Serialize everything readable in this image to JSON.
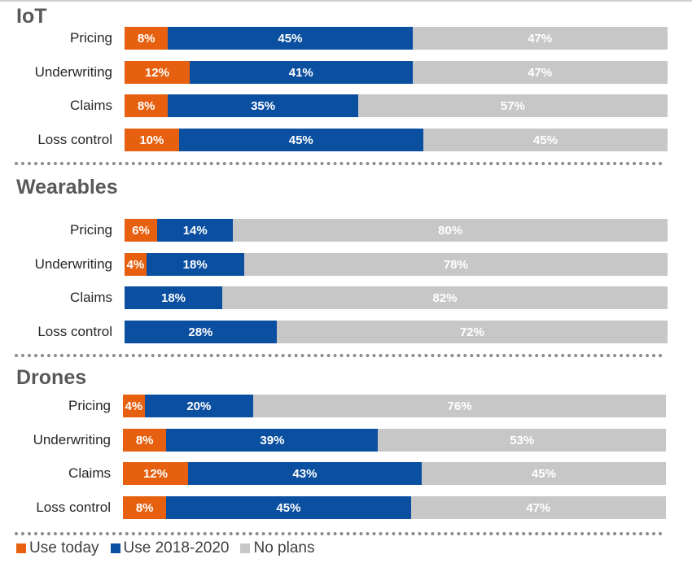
{
  "chart_data": {
    "type": "bar",
    "stacked": true,
    "orientation": "horizontal",
    "colors": {
      "today": "#e6600f",
      "planned": "#0b4fa1",
      "noplans": "#c7c7c7"
    },
    "legend": {
      "placement": "bottom-left",
      "items": [
        "Use today",
        "Use 2018-2020",
        "No plans"
      ]
    },
    "categories": [
      "Pricing",
      "Underwriting",
      "Claims",
      "Loss control"
    ],
    "groups": [
      {
        "title": "IoT",
        "rows": [
          {
            "label": "Pricing",
            "values": [
              8,
              45,
              47
            ],
            "labels": [
              "8%",
              "45%",
              "47%"
            ]
          },
          {
            "label": "Underwriting",
            "values": [
              12,
              41,
              47
            ],
            "labels": [
              "12%",
              "41%",
              "47%"
            ]
          },
          {
            "label": "Claims",
            "values": [
              8,
              35,
              57
            ],
            "labels": [
              "8%",
              "35%",
              "57%"
            ]
          },
          {
            "label": "Loss control",
            "values": [
              10,
              45,
              45
            ],
            "labels": [
              "10%",
              "45%",
              "45%"
            ]
          }
        ]
      },
      {
        "title": "Wearables",
        "rows": [
          {
            "label": "Pricing",
            "values": [
              6,
              14,
              80
            ],
            "labels": [
              "6%",
              "14%",
              "80%"
            ]
          },
          {
            "label": "Underwriting",
            "values": [
              4,
              18,
              78
            ],
            "labels": [
              "4%",
              "18%",
              "78%"
            ]
          },
          {
            "label": "Claims",
            "values": [
              0,
              18,
              82
            ],
            "labels": [
              "",
              "18%",
              "82%"
            ]
          },
          {
            "label": "Loss control",
            "values": [
              0,
              28,
              72
            ],
            "labels": [
              "",
              "28%",
              "72%"
            ]
          }
        ]
      },
      {
        "title": "Drones",
        "rows": [
          {
            "label": "Pricing",
            "values": [
              4,
              20,
              76
            ],
            "labels": [
              "4%",
              "20%",
              "76%"
            ]
          },
          {
            "label": "Underwriting",
            "values": [
              8,
              39,
              53
            ],
            "labels": [
              "8%",
              "39%",
              "53%"
            ]
          },
          {
            "label": "Claims",
            "values": [
              12,
              43,
              45
            ],
            "labels": [
              "12%",
              "43%",
              "45%"
            ]
          },
          {
            "label": "Loss control",
            "values": [
              8,
              45,
              47
            ],
            "labels": [
              "8%",
              "45%",
              "47%"
            ]
          }
        ]
      }
    ]
  }
}
